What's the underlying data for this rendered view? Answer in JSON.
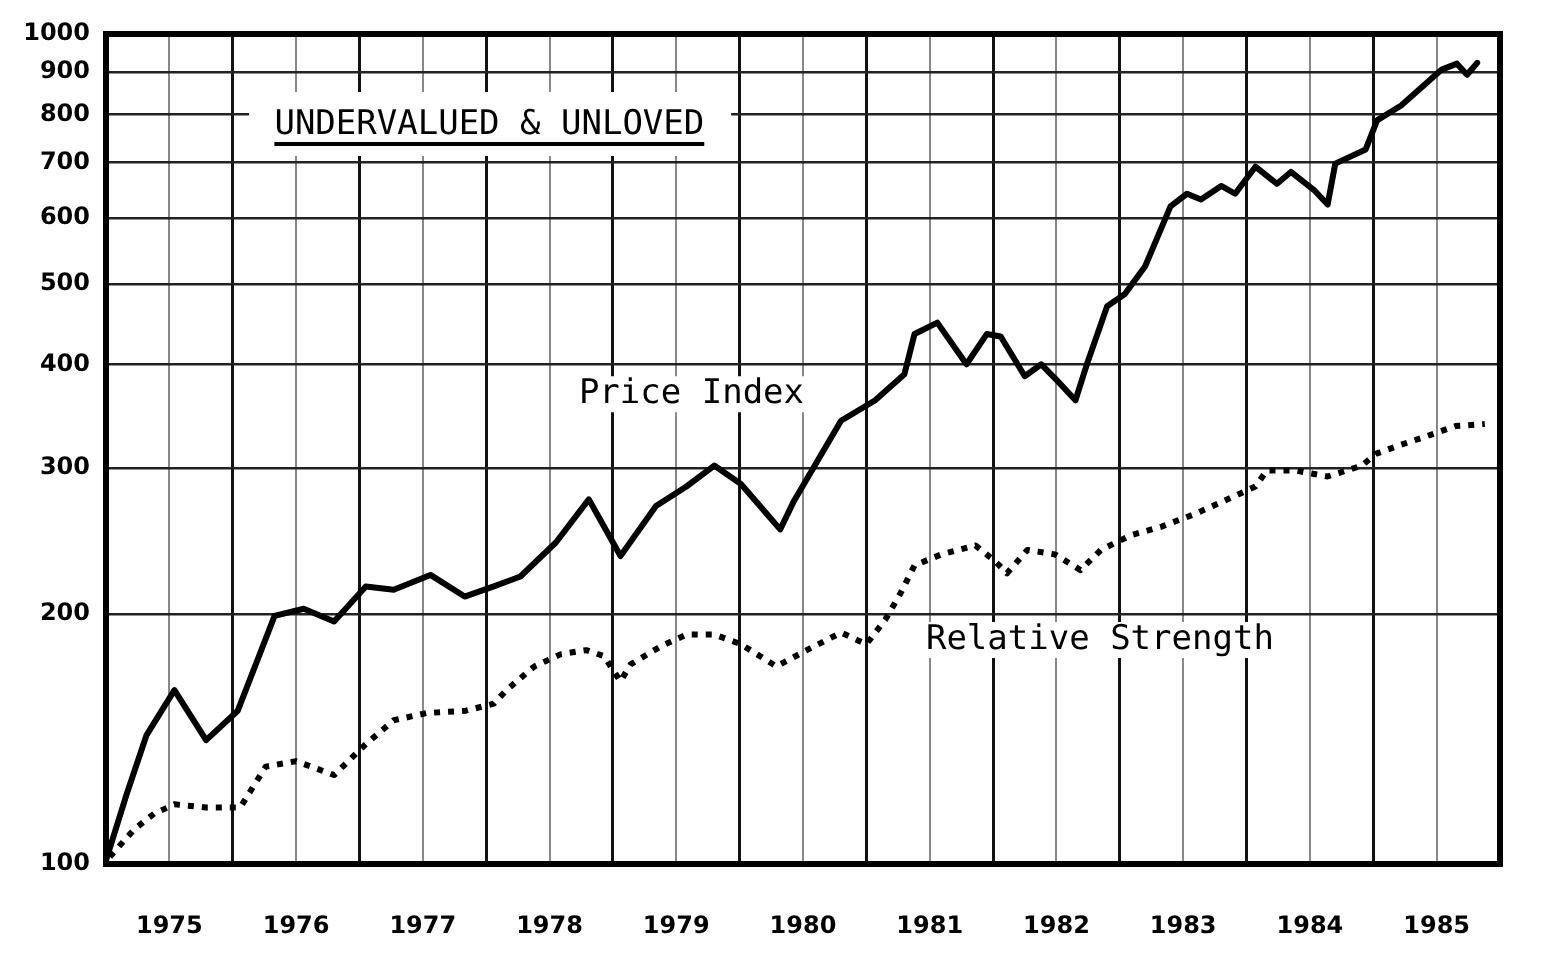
{
  "chart_data": {
    "type": "line",
    "title": "UNDERVALUED & UNLOVED",
    "xlim": [
      1975,
      1986
    ],
    "xticks": [
      {
        "value": 1975,
        "label": null
      },
      {
        "value": 1975.5,
        "label": "1975"
      },
      {
        "value": 1976,
        "label": null
      },
      {
        "value": 1976.5,
        "label": "1976"
      },
      {
        "value": 1977,
        "label": null
      },
      {
        "value": 1977.5,
        "label": "1977"
      },
      {
        "value": 1978,
        "label": null
      },
      {
        "value": 1978.5,
        "label": "1978"
      },
      {
        "value": 1979,
        "label": null
      },
      {
        "value": 1979.5,
        "label": "1979"
      },
      {
        "value": 1980,
        "label": null
      },
      {
        "value": 1980.5,
        "label": "1980"
      },
      {
        "value": 1981,
        "label": null
      },
      {
        "value": 1981.5,
        "label": "1981"
      },
      {
        "value": 1982,
        "label": null
      },
      {
        "value": 1982.5,
        "label": "1982"
      },
      {
        "value": 1983,
        "label": null
      },
      {
        "value": 1983.5,
        "label": "1983"
      },
      {
        "value": 1984,
        "label": null
      },
      {
        "value": 1984.5,
        "label": "1984"
      },
      {
        "value": 1985,
        "label": null
      },
      {
        "value": 1985.5,
        "label": "1985"
      },
      {
        "value": 1986,
        "label": null
      }
    ],
    "ylim": [
      100,
      1000
    ],
    "yticks": [
      100,
      200,
      300,
      400,
      500,
      600,
      700,
      800,
      900,
      1000
    ],
    "log": "y",
    "grid": true,
    "legend": false,
    "marker": "none",
    "series": [
      {
        "name": "Price Index",
        "color": "#000000",
        "line_style": "solid",
        "x": [
          1975.0,
          1975.16,
          1975.32,
          1975.54,
          1975.79,
          1976.04,
          1976.33,
          1976.56,
          1976.8,
          1977.05,
          1977.27,
          1977.56,
          1977.83,
          1978.06,
          1978.27,
          1978.55,
          1978.81,
          1979.06,
          1979.34,
          1979.58,
          1979.8,
          1980.01,
          1980.32,
          1980.43,
          1980.8,
          1981.07,
          1981.3,
          1981.38,
          1981.56,
          1981.79,
          1981.95,
          1982.06,
          1982.25,
          1982.38,
          1982.5,
          1982.65,
          1982.74,
          1982.9,
          1983.04,
          1983.2,
          1983.4,
          1983.53,
          1983.64,
          1983.8,
          1983.91,
          1984.07,
          1984.24,
          1984.35,
          1984.54,
          1984.64,
          1984.7,
          1984.94,
          1985.03,
          1985.22,
          1985.54,
          1985.66,
          1985.74,
          1985.82
        ],
        "values": [
          101,
          121,
          143,
          162,
          141,
          153,
          199,
          203,
          196,
          216,
          214,
          223,
          210,
          216,
          222,
          244,
          275,
          235,
          270,
          285,
          302,
          287,
          253,
          274,
          342,
          362,
          389,
          435,
          449,
          400,
          435,
          432,
          387,
          400,
          383,
          362,
          400,
          470,
          486,
          525,
          620,
          642,
          632,
          656,
          642,
          692,
          660,
          682,
          647,
          623,
          698,
          726,
          787,
          820,
          906,
          921,
          893,
          923
        ]
      },
      {
        "name": "Relative Strength",
        "color": "#000000",
        "line_style": "dotted",
        "x": [
          1975.03,
          1975.22,
          1975.38,
          1975.54,
          1975.79,
          1976.06,
          1976.26,
          1976.5,
          1976.8,
          1977.04,
          1977.27,
          1977.53,
          1977.84,
          1978.06,
          1978.16,
          1978.38,
          1978.59,
          1978.79,
          1978.93,
          1979.06,
          1979.14,
          1979.38,
          1979.58,
          1979.8,
          1980.01,
          1980.29,
          1980.53,
          1980.8,
          1981.0,
          1981.15,
          1981.27,
          1981.38,
          1981.59,
          1981.86,
          1982.01,
          1982.11,
          1982.27,
          1982.49,
          1982.69,
          1982.85,
          1983.09,
          1983.33,
          1983.59,
          1983.85,
          1984.07,
          1984.16,
          1984.38,
          1984.64,
          1984.91,
          1985.02,
          1985.22,
          1985.43,
          1985.65,
          1985.88
        ],
        "values": [
          102,
          110,
          115,
          118,
          117,
          117,
          131,
          133,
          128,
          139,
          149,
          152,
          153,
          156,
          162,
          173,
          179,
          181,
          178,
          166,
          174,
          183,
          189,
          189,
          184,
          173,
          181,
          190,
          184,
          197,
          212,
          229,
          236,
          242,
          232,
          224,
          239,
          236,
          226,
          239,
          249,
          255,
          264,
          275,
          285,
          298,
          298,
          293,
          302,
          312,
          320,
          328,
          337,
          339
        ]
      }
    ]
  }
}
